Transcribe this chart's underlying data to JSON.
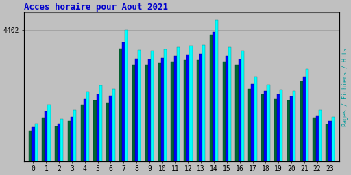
{
  "title": "Acces horaire pour Aout 2021",
  "title_color": "#0000cc",
  "title_fontsize": 9,
  "ylabel": "Pages / Fichiers / Hits",
  "ylabel_color": "#009999",
  "background_color": "#c0c0c0",
  "plot_bg_color": "#c0c0c0",
  "hours": [
    0,
    1,
    2,
    3,
    4,
    5,
    6,
    7,
    8,
    9,
    10,
    11,
    12,
    13,
    14,
    15,
    16,
    17,
    18,
    19,
    20,
    21,
    22,
    23
  ],
  "ytick_label": "4402",
  "pages": [
    1050,
    1480,
    1180,
    1350,
    1900,
    2050,
    1980,
    3800,
    3250,
    3250,
    3300,
    3350,
    3400,
    3400,
    4250,
    3350,
    3250,
    2450,
    2250,
    2100,
    2050,
    2700,
    1480,
    1250
  ],
  "fichiers": [
    1150,
    1680,
    1280,
    1500,
    2100,
    2250,
    2200,
    4000,
    3450,
    3420,
    3480,
    3530,
    3580,
    3600,
    4350,
    3550,
    3420,
    2600,
    2380,
    2250,
    2180,
    2850,
    1550,
    1350
  ],
  "hits": [
    1280,
    1900,
    1420,
    1720,
    2350,
    2550,
    2450,
    4420,
    3750,
    3720,
    3780,
    3830,
    3880,
    3900,
    4750,
    3850,
    3720,
    2850,
    2580,
    2420,
    2380,
    3100,
    1720,
    1500
  ],
  "pages_color": "#006633",
  "fichiers_color": "#0000ff",
  "hits_color": "#00ffff",
  "bar_width": 0.22,
  "ylim_max": 5000,
  "grid_color": "#999999",
  "tick_color": "#000000",
  "frame_color": "#555555"
}
